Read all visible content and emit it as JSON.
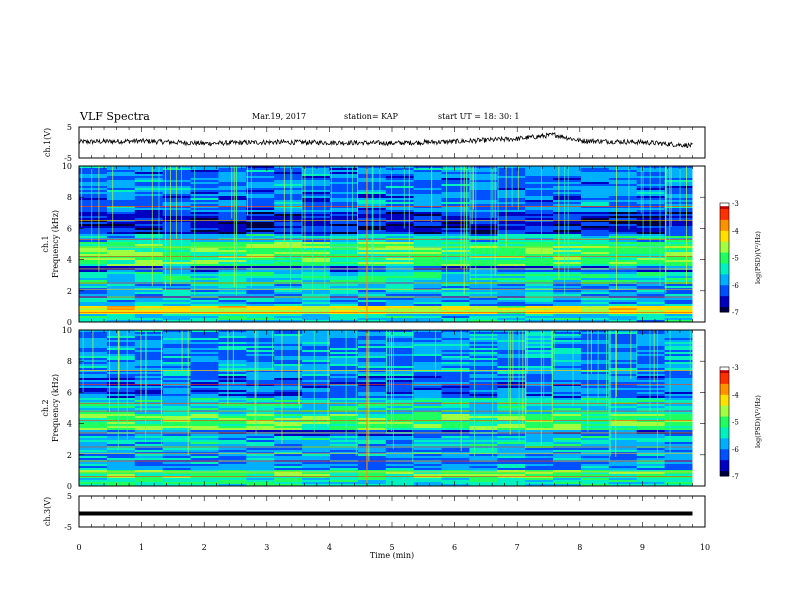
{
  "header": {
    "title": "VLF Spectra",
    "date": "Mar.19, 2017",
    "station": "station= KAP",
    "start": "start UT =  18: 30: 1"
  },
  "colors": {
    "colormap": [
      "#ffffff",
      "#c00000",
      "#ff3000",
      "#ff9000",
      "#ffe000",
      "#a0ff40",
      "#20ff60",
      "#00f0c0",
      "#00b0ff",
      "#0050ff",
      "#0000c0",
      "#000040"
    ],
    "trace": "#000000"
  },
  "chart_data": [
    {
      "type": "line",
      "panel": "ch1-waveform",
      "ylabel": "ch.1(V)",
      "ylim": [
        -5,
        5
      ],
      "yticks": [
        "5",
        "-5"
      ],
      "xlim": [
        0,
        10
      ],
      "series": [
        {
          "values_description": "noisy signal fluctuating around ~0 V",
          "x": [
            0,
            1,
            2,
            3,
            4,
            5,
            6,
            7,
            7.6,
            8,
            9,
            9.8
          ],
          "y": [
            0.2,
            0.5,
            -0.3,
            0.1,
            0.0,
            -0.2,
            0.3,
            1.2,
            2.5,
            0.6,
            0.1,
            -1.0
          ]
        }
      ]
    },
    {
      "type": "heatmap",
      "panel": "ch1-spectrogram",
      "ylabel": "Frequency (kHz)",
      "channel_label": "ch.1",
      "ylim": [
        0,
        10
      ],
      "yticks": [
        "0",
        "2",
        "4",
        "6",
        "8",
        "10"
      ],
      "xlim": [
        0,
        9.8
      ],
      "bands_khz": [
        {
          "from": 0,
          "to": 0.5,
          "level": -5.6
        },
        {
          "from": 0.5,
          "to": 1.0,
          "level": -4.4
        },
        {
          "from": 1.0,
          "to": 2.4,
          "level": -5.8
        },
        {
          "from": 2.4,
          "to": 3.2,
          "level": -5.4
        },
        {
          "from": 3.2,
          "to": 3.6,
          "level": -6.2
        },
        {
          "from": 3.6,
          "to": 5.1,
          "level": -5.0
        },
        {
          "from": 5.1,
          "to": 5.6,
          "level": -5.6
        },
        {
          "from": 5.6,
          "to": 7.0,
          "level": -6.5
        },
        {
          "from": 7.0,
          "to": 10.0,
          "level": -6.0
        }
      ],
      "colorbar": {
        "label": "log(PSD)(V²/Hz)",
        "ticks": [
          "-3",
          "-4",
          "-5",
          "-6",
          "-7"
        ],
        "range": [
          -7,
          -3
        ]
      }
    },
    {
      "type": "heatmap",
      "panel": "ch2-spectrogram",
      "ylabel": "Frequency (kHz)",
      "channel_label": "ch.2",
      "ylim": [
        0,
        10
      ],
      "yticks": [
        "0",
        "2",
        "4",
        "6",
        "8",
        "10"
      ],
      "xlim": [
        0,
        9.8
      ],
      "bands_khz": [
        {
          "from": 0,
          "to": 0.5,
          "level": -5.4
        },
        {
          "from": 0.5,
          "to": 1.0,
          "level": -5.0
        },
        {
          "from": 1.0,
          "to": 2.4,
          "level": -5.9
        },
        {
          "from": 2.4,
          "to": 3.2,
          "level": -5.6
        },
        {
          "from": 3.2,
          "to": 3.6,
          "level": -6.2
        },
        {
          "from": 3.6,
          "to": 4.6,
          "level": -4.9
        },
        {
          "from": 4.6,
          "to": 5.6,
          "level": -5.5
        },
        {
          "from": 5.6,
          "to": 7.0,
          "level": -6.1
        },
        {
          "from": 7.0,
          "to": 10.0,
          "level": -5.9
        }
      ],
      "colorbar": {
        "label": "log(PSD)(V²/Hz)",
        "ticks": [
          "-3",
          "-4",
          "-5",
          "-6",
          "-7"
        ],
        "range": [
          -7,
          -3
        ]
      }
    },
    {
      "type": "line",
      "panel": "ch3-waveform",
      "ylabel": "ch.3(V)",
      "ylim": [
        -5,
        5
      ],
      "yticks": [
        "5",
        "-5"
      ],
      "xlim": [
        0,
        10
      ],
      "xlabel": "Time (min)",
      "xticks": [
        "0",
        "1",
        "2",
        "3",
        "4",
        "5",
        "6",
        "7",
        "8",
        "9",
        "10"
      ],
      "series": [
        {
          "x": [
            0,
            9.8
          ],
          "y": [
            0,
            0
          ]
        }
      ]
    }
  ]
}
